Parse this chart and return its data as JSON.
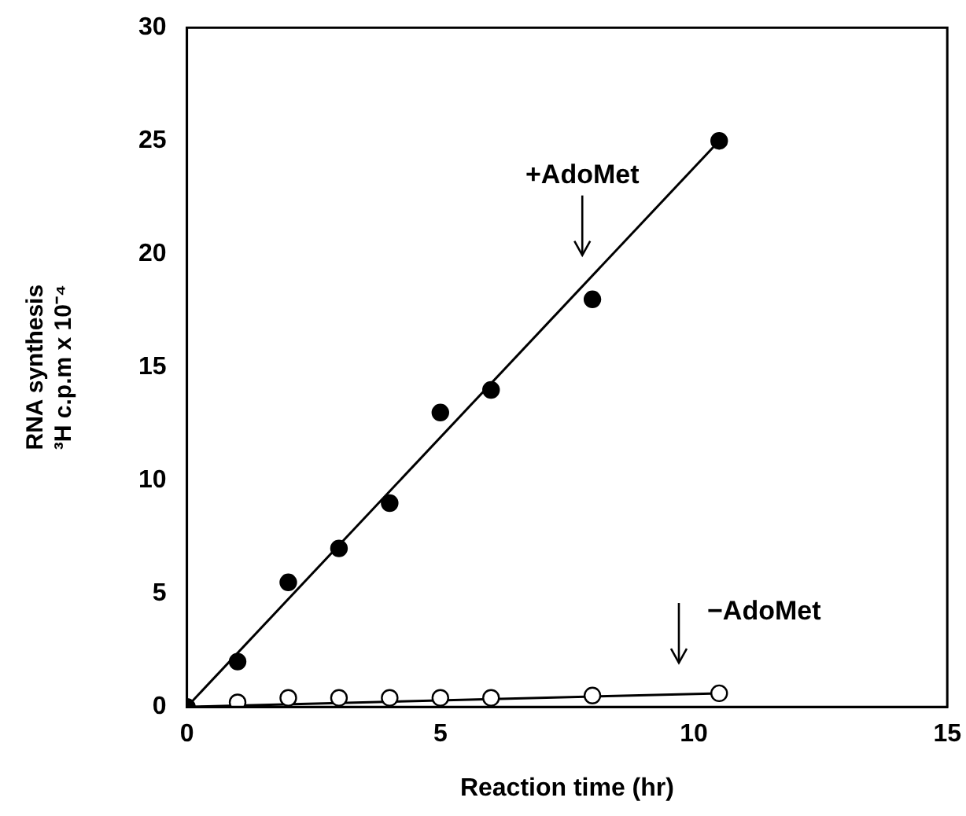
{
  "chart_data": {
    "type": "scatter",
    "xlabel": "Reaction time (hr)",
    "ylabel": "RNA synthesis\n³H c.p.m x 10⁻⁴",
    "xlim": [
      0,
      15
    ],
    "xticks": [
      0,
      5,
      10,
      15
    ],
    "ylim": [
      0,
      30
    ],
    "yticks": [
      0,
      5,
      10,
      15,
      20,
      25,
      30
    ],
    "grid": false,
    "legend": false,
    "marker": "circle",
    "series": [
      {
        "color": "#000000",
        "x": [
          0,
          1,
          2,
          3,
          4,
          5,
          6,
          8,
          10.5
        ],
        "values": [
          0,
          2,
          5.5,
          7,
          9,
          13,
          14,
          18,
          25
        ]
      },
      {
        "color": "#ffffff",
        "x": [
          1,
          2,
          3,
          4,
          5,
          6,
          8,
          10.5
        ],
        "values": [
          0.2,
          0.4,
          0.4,
          0.4,
          0.4,
          0.4,
          0.5,
          0.6
        ]
      },
      {
        "type": "line",
        "color": "#000000",
        "marker": "none",
        "x": [
          0,
          10.5
        ],
        "values": [
          0,
          25
        ]
      },
      {
        "type": "line",
        "color": "#000000",
        "marker": "none",
        "x": [
          0,
          10.5
        ],
        "values": [
          0,
          0.6
        ]
      }
    ],
    "annotations": [
      "+AdoMet",
      "−AdoMet"
    ]
  }
}
